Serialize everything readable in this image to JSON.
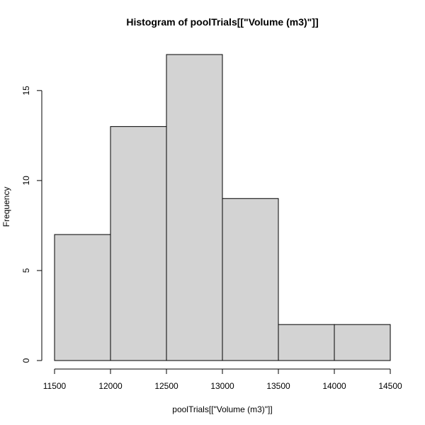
{
  "chart_data": {
    "type": "bar",
    "title": "Histogram of poolTrials[[\"Volume (m3)\"]]",
    "xlabel": "poolTrials[[\"Volume (m3)\"]]",
    "ylabel": "Frequency",
    "bins": [
      {
        "from": 11500,
        "to": 12000,
        "count": 7
      },
      {
        "from": 12000,
        "to": 12500,
        "count": 13
      },
      {
        "from": 12500,
        "to": 13000,
        "count": 17
      },
      {
        "from": 13000,
        "to": 13500,
        "count": 9
      },
      {
        "from": 13500,
        "to": 14000,
        "count": 2
      },
      {
        "from": 14000,
        "to": 14500,
        "count": 2
      }
    ],
    "xlim": [
      11500,
      14500
    ],
    "ylim": [
      0,
      17
    ],
    "xticks": [
      11500,
      12000,
      12500,
      13000,
      13500,
      14000,
      14500
    ],
    "yticks": [
      0,
      5,
      10,
      15
    ],
    "grid": false,
    "colors": {
      "bar_fill": "#d3d3d3",
      "bar_stroke": "#000000"
    }
  }
}
